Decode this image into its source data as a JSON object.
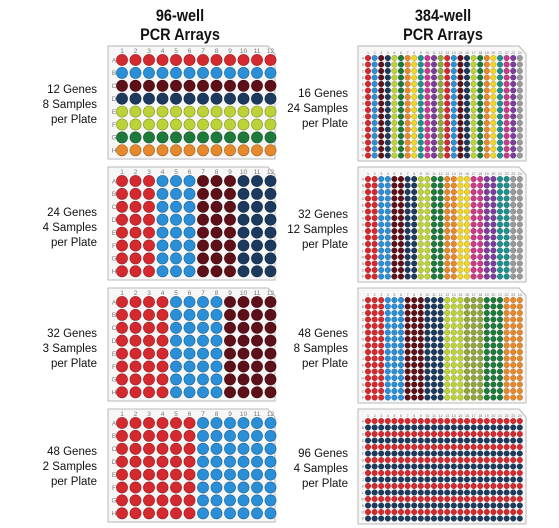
{
  "titles": {
    "left": [
      "96-well",
      "PCR Arrays"
    ],
    "right": [
      "384-well",
      "PCR Arrays"
    ]
  },
  "colors": {
    "red": "#d42a2f",
    "blue": "#2a8fd6",
    "navy": "#1c3a5e",
    "maroon": "#5e1018",
    "lime": "#bcd236",
    "green": "#1e7a3a",
    "orange": "#e5892c",
    "yellow": "#f0d528",
    "teal": "#1d8f8d",
    "magenta": "#c93b8a",
    "purple": "#7b3f9a",
    "olive": "#8ea63a",
    "gray": "#9a9a9a"
  },
  "plates96": [
    {
      "lines": [
        "12 Genes",
        "8 Samples",
        "per Plate"
      ],
      "row_colors": [
        "red",
        "blue",
        "maroon",
        "navy",
        "lime",
        "lime",
        "green",
        "orange"
      ]
    },
    {
      "lines": [
        "24 Genes",
        "4 Samples",
        "per Plate"
      ],
      "col_colors": [
        "red",
        "red",
        "red",
        "blue",
        "blue",
        "blue",
        "maroon",
        "maroon",
        "maroon",
        "navy",
        "navy",
        "navy"
      ]
    },
    {
      "lines": [
        "32 Genes",
        "3 Samples",
        "per Plate"
      ],
      "col_colors": [
        "red",
        "red",
        "red",
        "red",
        "blue",
        "blue",
        "blue",
        "blue",
        "maroon",
        "maroon",
        "maroon",
        "maroon"
      ]
    },
    {
      "lines": [
        "48 Genes",
        "2 Samples",
        "per Plate"
      ],
      "col_colors": [
        "red",
        "red",
        "red",
        "red",
        "red",
        "red",
        "blue",
        "blue",
        "blue",
        "blue",
        "blue",
        "blue"
      ]
    }
  ],
  "plates384": [
    {
      "lines": [
        "16 Genes",
        "24 Samples",
        "per Plate"
      ],
      "col_colors": [
        "red",
        "blue",
        "maroon",
        "navy",
        "lime",
        "green",
        "orange",
        "yellow",
        "teal",
        "magenta",
        "purple",
        "olive",
        "red",
        "blue",
        "maroon",
        "navy",
        "lime",
        "green",
        "orange",
        "yellow",
        "teal",
        "magenta",
        "purple",
        "gray"
      ]
    },
    {
      "lines": [
        "32 Genes",
        "12 Samples",
        "per Plate"
      ],
      "col_colors": [
        "red",
        "red",
        "blue",
        "blue",
        "maroon",
        "maroon",
        "navy",
        "navy",
        "lime",
        "lime",
        "green",
        "green",
        "orange",
        "orange",
        "yellow",
        "yellow",
        "magenta",
        "magenta",
        "purple",
        "purple",
        "teal",
        "teal",
        "gray",
        "gray"
      ]
    },
    {
      "lines": [
        "48 Genes",
        "8 Samples",
        "per Plate"
      ],
      "col_colors": [
        "red",
        "red",
        "red",
        "blue",
        "blue",
        "blue",
        "maroon",
        "maroon",
        "maroon",
        "navy",
        "navy",
        "navy",
        "lime",
        "lime",
        "lime",
        "olive",
        "olive",
        "olive",
        "green",
        "green",
        "green",
        "orange",
        "orange",
        "orange"
      ]
    },
    {
      "lines": [
        "96 Genes",
        "4 Samples",
        "per Plate"
      ],
      "row_colors": [
        "red",
        "navy",
        "red",
        "navy",
        "red",
        "navy",
        "red",
        "navy",
        "red",
        "navy",
        "red",
        "navy",
        "red",
        "navy",
        "red",
        "navy"
      ]
    }
  ],
  "row_letters_96": [
    "A",
    "B",
    "C",
    "D",
    "E",
    "F",
    "G",
    "H"
  ],
  "col_numbers_96": [
    "1",
    "2",
    "3",
    "4",
    "5",
    "6",
    "7",
    "8",
    "9",
    "10",
    "11",
    "12"
  ],
  "row_letters_384": [
    "A",
    "B",
    "C",
    "D",
    "E",
    "F",
    "G",
    "H",
    "I",
    "J",
    "K",
    "L",
    "M",
    "N",
    "O",
    "P"
  ],
  "col_numbers_384": [
    "1",
    "2",
    "3",
    "4",
    "5",
    "6",
    "7",
    "8",
    "9",
    "10",
    "11",
    "12",
    "13",
    "14",
    "15",
    "16",
    "17",
    "18",
    "19",
    "20",
    "21",
    "22",
    "23",
    "24"
  ]
}
